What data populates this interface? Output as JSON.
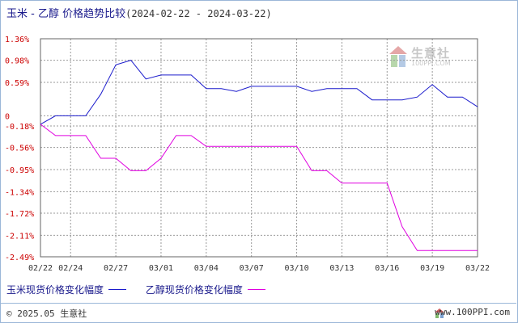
{
  "title": {
    "text": "玉米 - 乙醇 价格趋势比较",
    "dates": "(2024-02-22 - 2024-03-22)"
  },
  "legend": [
    {
      "label": "玉米现货价格变化幅度",
      "color": "#1a1acc"
    },
    {
      "label": "乙醇现货价格变化幅度",
      "color": "#e000e0"
    }
  ],
  "footer": {
    "copyright": "© 2025.05 生意社",
    "site": "www.100PPI.com"
  },
  "watermark": {
    "name": "生意社",
    "url": "100PPI.COM"
  },
  "chart_data": {
    "type": "line",
    "x_ticks": [
      "02/22",
      "02/24",
      "02/27",
      "03/01",
      "03/04",
      "03/07",
      "03/10",
      "03/13",
      "03/16",
      "03/19",
      "03/22"
    ],
    "y_ticks": [
      "1.36%",
      "0.98%",
      "0.59%",
      "0",
      "-0.18%",
      "-0.56%",
      "-0.95%",
      "-1.34%",
      "-1.72%",
      "-2.11%",
      "-2.49%"
    ],
    "y_tick_values": [
      1.36,
      0.98,
      0.59,
      0,
      -0.18,
      -0.56,
      -0.95,
      -1.34,
      -1.72,
      -2.11,
      -2.49
    ],
    "ylim": [
      -2.49,
      1.36
    ],
    "grid": true,
    "legend_position": "bottom",
    "x": [
      "02/22",
      "02/23",
      "02/24",
      "02/25",
      "02/26",
      "02/27",
      "02/28",
      "02/29",
      "03/01",
      "03/02",
      "03/03",
      "03/04",
      "03/05",
      "03/06",
      "03/07",
      "03/08",
      "03/09",
      "03/10",
      "03/11",
      "03/12",
      "03/13",
      "03/14",
      "03/15",
      "03/16",
      "03/17",
      "03/18",
      "03/19",
      "03/20",
      "03/21",
      "03/22"
    ],
    "series": [
      {
        "name": "玉米现货价格变化幅度",
        "color": "#1a1acc",
        "values": [
          -0.15,
          0,
          0,
          0,
          0.38,
          0.9,
          0.98,
          0.65,
          0.72,
          0.72,
          0.72,
          0.48,
          0.48,
          0.43,
          0.52,
          0.52,
          0.52,
          0.52,
          0.43,
          0.48,
          0.48,
          0.48,
          0.28,
          0.28,
          0.28,
          0.33,
          0.55,
          0.33,
          0.33,
          0.16
        ]
      },
      {
        "name": "乙醇现货价格变化幅度",
        "color": "#e000e0",
        "values": [
          -0.15,
          -0.35,
          -0.35,
          -0.35,
          -0.75,
          -0.75,
          -0.97,
          -0.97,
          -0.75,
          -0.35,
          -0.35,
          -0.54,
          -0.54,
          -0.54,
          -0.54,
          -0.54,
          -0.54,
          -0.54,
          -0.97,
          -0.97,
          -1.19,
          -1.19,
          -1.19,
          -1.19,
          -1.96,
          -2.38,
          -2.38,
          -2.38,
          -2.38,
          -2.38
        ]
      }
    ]
  }
}
